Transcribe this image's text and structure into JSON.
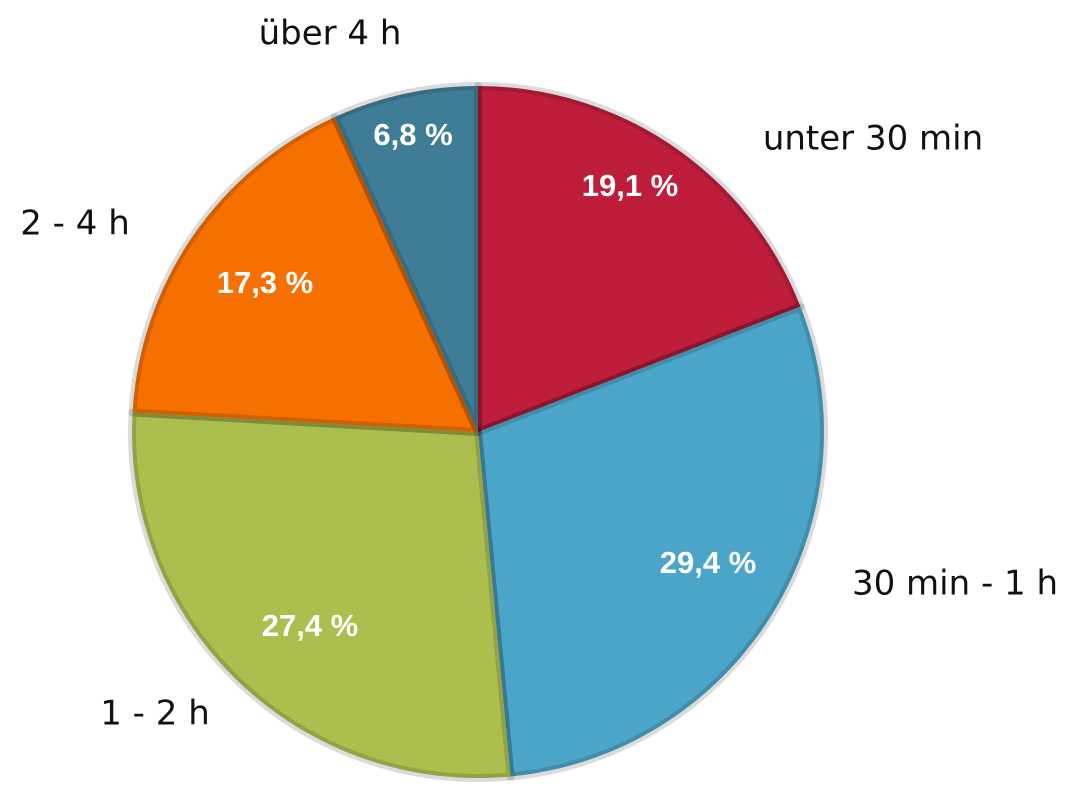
{
  "chart_data": {
    "type": "pie",
    "categories": [
      "unter 30 min",
      "30 min - 1 h",
      "1 - 2 h",
      "2 - 4 h",
      "über 4 h"
    ],
    "values": [
      19.1,
      29.4,
      27.4,
      17.3,
      6.8
    ],
    "value_labels": [
      "19,1 %",
      "29,4 %",
      "27,4 %",
      "17,3 %",
      "6,8 %"
    ],
    "colors": [
      "#be1e3c",
      "#4ba5c9",
      "#abbe4e",
      "#f57000",
      "#3f7d96"
    ]
  }
}
